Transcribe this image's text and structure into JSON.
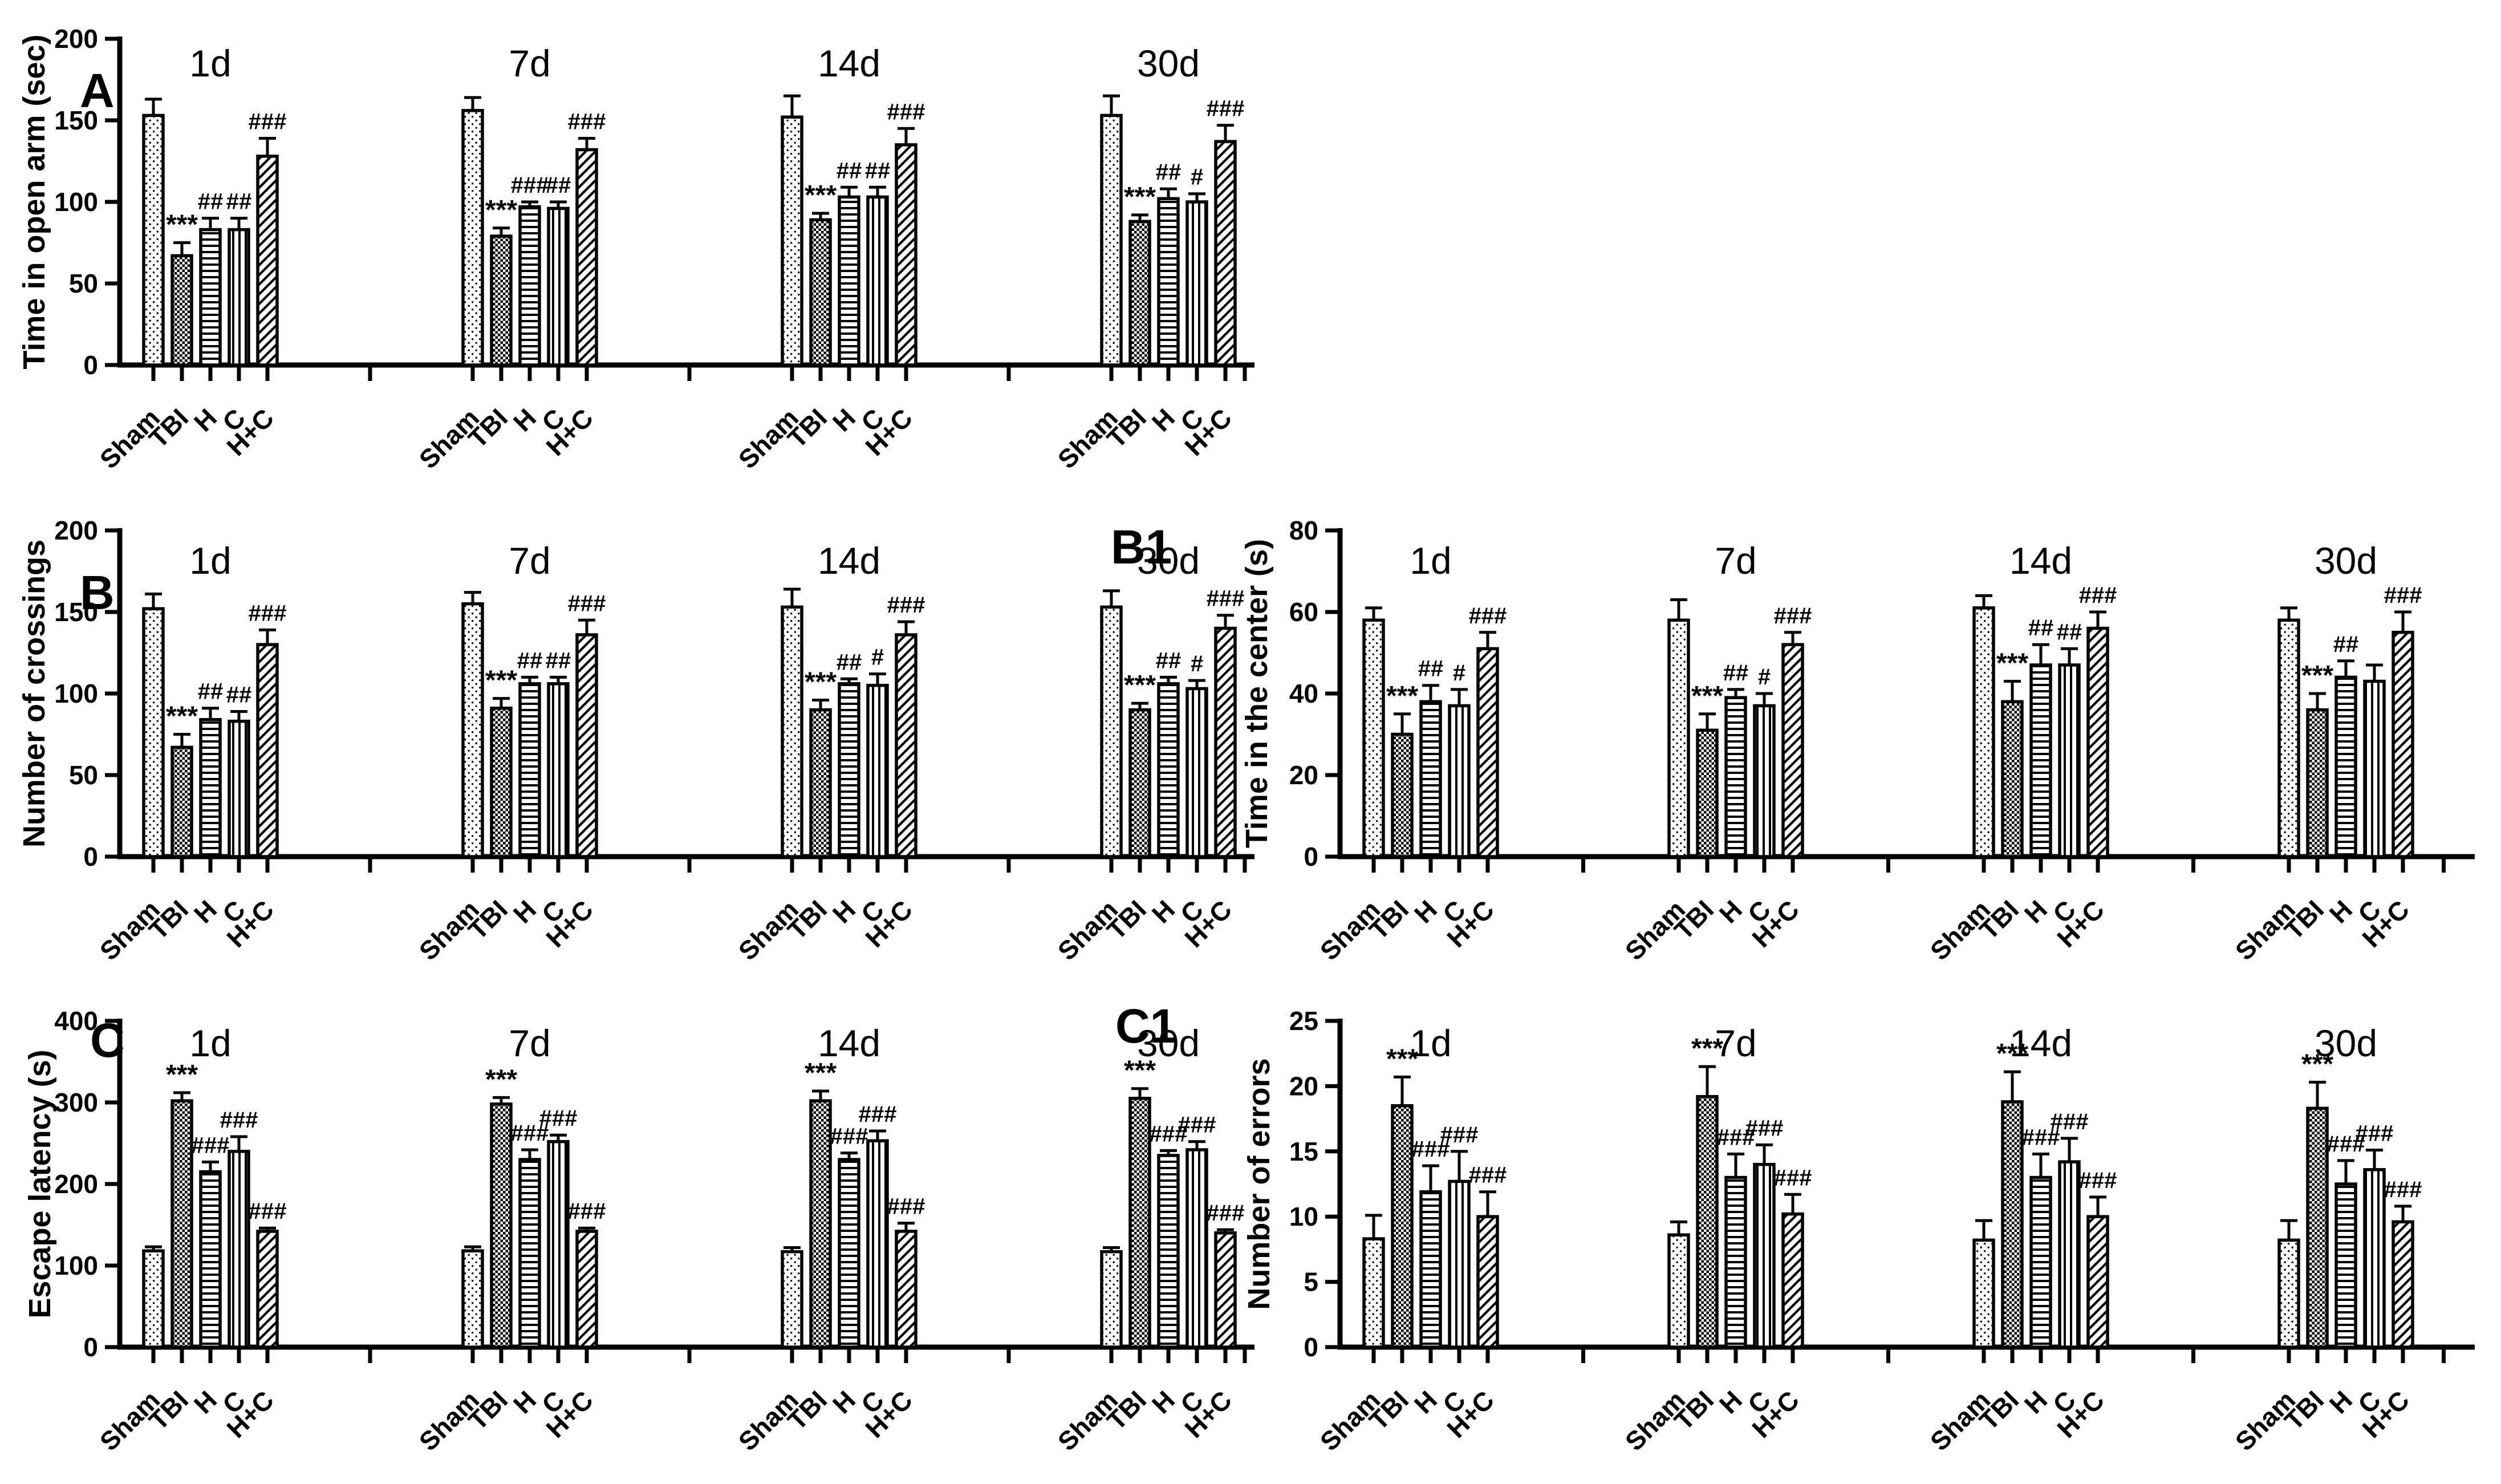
{
  "colors": {
    "ink": "#000000",
    "background": "#ffffff"
  },
  "groups": [
    "Sham",
    "TBI",
    "H",
    "C",
    "H+C"
  ],
  "group_patterns": {
    "Sham": "dots",
    "TBI": "checker",
    "H": "hlines",
    "C": "vlines",
    "H+C": "diag"
  },
  "significance_legend": {
    "star": "*",
    "hash": "#"
  },
  "chart_data": [
    {
      "type": "bar",
      "panel_label": "A",
      "ylabel": "Time in open arm (sec)",
      "ylim": [
        0,
        200
      ],
      "yticks": [
        0,
        50,
        100,
        150,
        200
      ],
      "categories": [
        "Sham",
        "TBI",
        "H",
        "C",
        "H+C"
      ],
      "timepoints": [
        {
          "title": "1d",
          "bars": [
            [
              153,
              10,
              ""
            ],
            [
              67,
              8,
              "***"
            ],
            [
              83,
              7,
              "##"
            ],
            [
              83,
              7,
              "##"
            ],
            [
              128,
              11,
              "###"
            ]
          ]
        },
        {
          "title": "7d",
          "bars": [
            [
              156,
              8,
              ""
            ],
            [
              79,
              5,
              "***"
            ],
            [
              97,
              3,
              "###"
            ],
            [
              96,
              4,
              "##"
            ],
            [
              132,
              7,
              "###"
            ]
          ]
        },
        {
          "title": "14d",
          "bars": [
            [
              152,
              13,
              ""
            ],
            [
              89,
              4,
              "***"
            ],
            [
              103,
              6,
              "##"
            ],
            [
              103,
              6,
              "##"
            ],
            [
              135,
              10,
              "###"
            ]
          ]
        },
        {
          "title": "30d",
          "bars": [
            [
              153,
              12,
              ""
            ],
            [
              88,
              4,
              "***"
            ],
            [
              102,
              6,
              "##"
            ],
            [
              100,
              5,
              "#"
            ],
            [
              137,
              10,
              "###"
            ]
          ]
        }
      ]
    },
    {
      "type": "bar",
      "panel_label": "B",
      "ylabel": "Number of crossings",
      "ylim": [
        0,
        200
      ],
      "yticks": [
        0,
        50,
        100,
        150,
        200
      ],
      "categories": [
        "Sham",
        "TBI",
        "H",
        "C",
        "H+C"
      ],
      "timepoints": [
        {
          "title": "1d",
          "bars": [
            [
              152,
              9,
              ""
            ],
            [
              67,
              8,
              "***"
            ],
            [
              84,
              7,
              "##"
            ],
            [
              83,
              6,
              "##"
            ],
            [
              130,
              9,
              "###"
            ]
          ]
        },
        {
          "title": "7d",
          "bars": [
            [
              155,
              7,
              ""
            ],
            [
              91,
              6,
              "***"
            ],
            [
              106,
              4,
              "##"
            ],
            [
              106,
              4,
              "##"
            ],
            [
              136,
              9,
              "###"
            ]
          ]
        },
        {
          "title": "14d",
          "bars": [
            [
              153,
              11,
              ""
            ],
            [
              90,
              6,
              "***"
            ],
            [
              106,
              3,
              "##"
            ],
            [
              105,
              7,
              "#"
            ],
            [
              136,
              8,
              "###"
            ]
          ]
        },
        {
          "title": "30d",
          "bars": [
            [
              153,
              10,
              ""
            ],
            [
              90,
              4,
              "***"
            ],
            [
              106,
              4,
              "##"
            ],
            [
              103,
              5,
              "#"
            ],
            [
              140,
              8,
              "###"
            ]
          ]
        }
      ]
    },
    {
      "type": "bar",
      "panel_label": "B1",
      "ylabel": "Time in the center (s)",
      "ylim": [
        0,
        80
      ],
      "yticks": [
        0,
        20,
        40,
        60,
        80
      ],
      "categories": [
        "Sham",
        "TBI",
        "H",
        "C",
        "H+C"
      ],
      "timepoints": [
        {
          "title": "1d",
          "bars": [
            [
              58,
              3,
              ""
            ],
            [
              30,
              5,
              "***"
            ],
            [
              38,
              4,
              "##"
            ],
            [
              37,
              4,
              "#"
            ],
            [
              51,
              4,
              "###"
            ]
          ]
        },
        {
          "title": "7d",
          "bars": [
            [
              58,
              5,
              ""
            ],
            [
              31,
              4,
              "***"
            ],
            [
              39,
              2,
              "##"
            ],
            [
              37,
              3,
              "#"
            ],
            [
              52,
              3,
              "###"
            ]
          ]
        },
        {
          "title": "14d",
          "bars": [
            [
              61,
              3,
              ""
            ],
            [
              38,
              5,
              "***"
            ],
            [
              47,
              5,
              "##"
            ],
            [
              47,
              4,
              "##"
            ],
            [
              56,
              4,
              "###"
            ]
          ]
        },
        {
          "title": "30d",
          "bars": [
            [
              58,
              3,
              ""
            ],
            [
              36,
              4,
              "***"
            ],
            [
              44,
              4,
              "##"
            ],
            [
              43,
              4,
              ""
            ],
            [
              55,
              5,
              "###"
            ]
          ]
        }
      ]
    },
    {
      "type": "bar",
      "panel_label": "C",
      "ylabel": "Escape latency (s)",
      "ylim": [
        0,
        400
      ],
      "yticks": [
        0,
        100,
        200,
        300,
        400
      ],
      "categories": [
        "Sham",
        "TBI",
        "H",
        "C",
        "H+C"
      ],
      "timepoints": [
        {
          "title": "1d",
          "bars": [
            [
              118,
              5,
              ""
            ],
            [
              302,
              10,
              "***"
            ],
            [
              215,
              12,
              "###"
            ],
            [
              240,
              18,
              "###"
            ],
            [
              142,
              4,
              "###"
            ]
          ]
        },
        {
          "title": "7d",
          "bars": [
            [
              118,
              5,
              ""
            ],
            [
              298,
              8,
              "***"
            ],
            [
              230,
              12,
              "###"
            ],
            [
              252,
              8,
              "###"
            ],
            [
              142,
              4,
              "###"
            ]
          ]
        },
        {
          "title": "14d",
          "bars": [
            [
              117,
              5,
              ""
            ],
            [
              302,
              12,
              "***"
            ],
            [
              230,
              8,
              "###"
            ],
            [
              253,
              12,
              "###"
            ],
            [
              142,
              10,
              "###"
            ]
          ]
        },
        {
          "title": "30d",
          "bars": [
            [
              117,
              5,
              ""
            ],
            [
              305,
              12,
              "***"
            ],
            [
              235,
              6,
              "###"
            ],
            [
              242,
              10,
              "###"
            ],
            [
              140,
              4,
              "###"
            ]
          ]
        }
      ]
    },
    {
      "type": "bar",
      "panel_label": "C1",
      "ylabel": "Number of errors",
      "ylim": [
        0,
        25
      ],
      "yticks": [
        0,
        5,
        10,
        15,
        20,
        25
      ],
      "categories": [
        "Sham",
        "TBI",
        "H",
        "C",
        "H+C"
      ],
      "timepoints": [
        {
          "title": "1d",
          "bars": [
            [
              8.3,
              1.8,
              ""
            ],
            [
              18.5,
              2.2,
              "***"
            ],
            [
              11.9,
              2.0,
              "###"
            ],
            [
              12.7,
              2.3,
              "###"
            ],
            [
              10.0,
              1.9,
              "###"
            ]
          ]
        },
        {
          "title": "7d",
          "bars": [
            [
              8.6,
              1.0,
              ""
            ],
            [
              19.2,
              2.3,
              "***"
            ],
            [
              13.0,
              1.8,
              "###"
            ],
            [
              14.0,
              1.5,
              "###"
            ],
            [
              10.2,
              1.5,
              "###"
            ]
          ]
        },
        {
          "title": "14d",
          "bars": [
            [
              8.2,
              1.5,
              ""
            ],
            [
              18.8,
              2.3,
              "***"
            ],
            [
              13.0,
              1.8,
              "###"
            ],
            [
              14.2,
              1.8,
              "###"
            ],
            [
              10.0,
              1.5,
              "###"
            ]
          ]
        },
        {
          "title": "30d",
          "bars": [
            [
              8.2,
              1.5,
              ""
            ],
            [
              18.3,
              2.0,
              "***"
            ],
            [
              12.5,
              1.8,
              "###"
            ],
            [
              13.6,
              1.5,
              "###"
            ],
            [
              9.6,
              1.2,
              "###"
            ]
          ]
        }
      ]
    }
  ]
}
